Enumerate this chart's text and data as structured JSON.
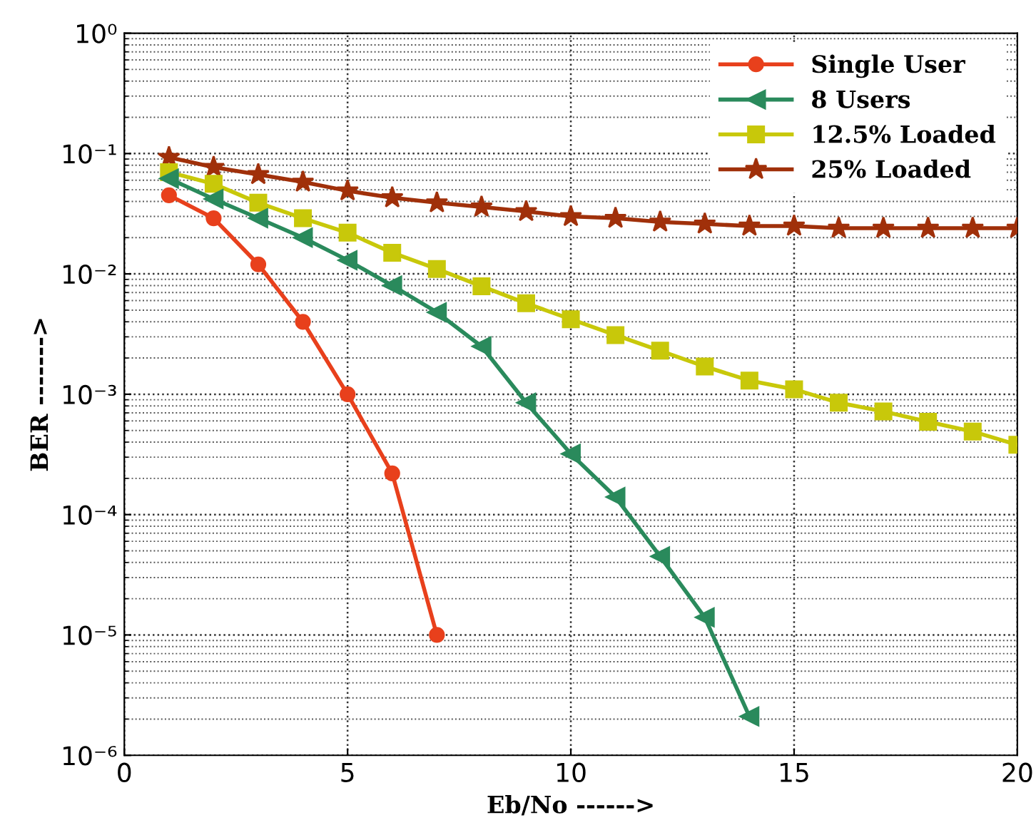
{
  "chart_data": {
    "type": "line",
    "xlabel": "Eb/No ------>",
    "ylabel": "BER ------->",
    "log": "y",
    "grid": true,
    "legend": "top right",
    "line_style": "solid",
    "xlim": [
      0,
      20
    ],
    "xticks": [
      0,
      5,
      10,
      15,
      20
    ],
    "ylim": [
      1e-06,
      1
    ],
    "yticks": [
      {
        "value": 1e-06,
        "label": "10⁻⁶"
      },
      {
        "value": 1e-05,
        "label": "10⁻⁵"
      },
      {
        "value": 0.0001,
        "label": "10⁻⁴"
      },
      {
        "value": 0.001,
        "label": "10⁻³"
      },
      {
        "value": 0.01,
        "label": "10⁻²"
      },
      {
        "value": 0.1,
        "label": "10⁻¹"
      },
      {
        "value": 1,
        "label": "10⁰"
      }
    ],
    "x": [
      1,
      2,
      3,
      4,
      5,
      6,
      7,
      8,
      9,
      10,
      11,
      12,
      13,
      14,
      15,
      16,
      17,
      18,
      19,
      20
    ],
    "series": [
      {
        "name": "Single User",
        "color": "#e8401c",
        "marker": "circle",
        "x": [
          1,
          2,
          3,
          4,
          5,
          6,
          7
        ],
        "values": [
          0.045,
          0.029,
          0.012,
          0.004,
          0.001,
          0.00022,
          1e-05
        ]
      },
      {
        "name": "8 Users",
        "color": "#2a8a5c",
        "marker": "triangle",
        "x": [
          1,
          2,
          3,
          4,
          5,
          6,
          7,
          8,
          9,
          10,
          11,
          12,
          13,
          14
        ],
        "values": [
          0.062,
          0.042,
          0.029,
          0.02,
          0.013,
          0.008,
          0.0048,
          0.0025,
          0.00085,
          0.00032,
          0.00014,
          4.5e-05,
          1.4e-05,
          2.1e-06
        ]
      },
      {
        "name": "12.5% Loaded",
        "color": "#c8c80a",
        "marker": "square",
        "values": [
          0.07,
          0.056,
          0.039,
          0.029,
          0.022,
          0.015,
          0.011,
          0.0079,
          0.0057,
          0.0042,
          0.0031,
          0.0023,
          0.0017,
          0.0013,
          0.0011,
          0.00085,
          0.00072,
          0.00059,
          0.00049,
          0.00038
        ]
      },
      {
        "name": "25% Loaded",
        "color": "#a0300a",
        "marker": "star",
        "values": [
          0.093,
          0.077,
          0.067,
          0.058,
          0.049,
          0.043,
          0.039,
          0.036,
          0.033,
          0.03,
          0.029,
          0.027,
          0.026,
          0.025,
          0.025,
          0.024,
          0.024,
          0.024,
          0.024,
          0.024
        ]
      }
    ]
  }
}
